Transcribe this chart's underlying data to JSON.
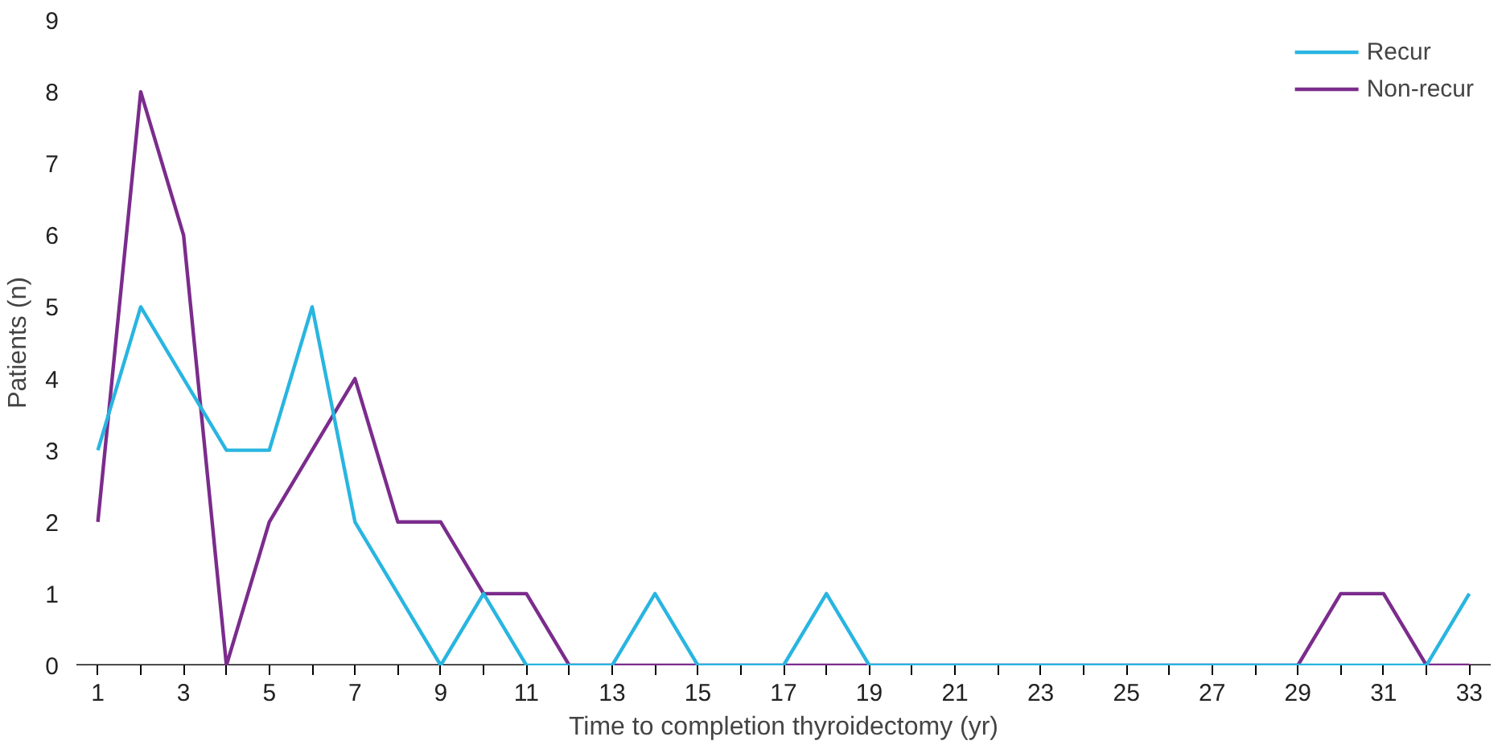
{
  "chart_data": {
    "type": "line",
    "xlabel": "Time to completion thyroidectomy (yr)",
    "ylabel": "Patients (n)",
    "x": [
      1,
      2,
      3,
      4,
      5,
      6,
      7,
      8,
      9,
      10,
      11,
      12,
      13,
      14,
      15,
      16,
      17,
      18,
      19,
      20,
      21,
      22,
      23,
      24,
      25,
      26,
      27,
      28,
      29,
      30,
      31,
      32,
      33
    ],
    "series": [
      {
        "name": "Recur",
        "color": "#29b5e0",
        "values": [
          3,
          5,
          4,
          3,
          3,
          5,
          2,
          1,
          0,
          1,
          0,
          0,
          0,
          1,
          0,
          0,
          0,
          1,
          0,
          0,
          0,
          0,
          0,
          0,
          0,
          0,
          0,
          0,
          0,
          0,
          0,
          0,
          1
        ]
      },
      {
        "name": "Non-recur",
        "color": "#7b2c8c",
        "values": [
          2,
          8,
          6,
          0,
          2,
          3,
          4,
          2,
          2,
          1,
          1,
          0,
          0,
          0,
          0,
          0,
          0,
          0,
          0,
          0,
          0,
          0,
          0,
          0,
          0,
          0,
          0,
          0,
          0,
          1,
          1,
          0,
          0
        ]
      }
    ],
    "xlim": [
      0.5,
      33.5
    ],
    "ylim": [
      0,
      9
    ],
    "xticks": [
      1,
      {
        "value": 2,
        "label": null
      },
      3,
      {
        "value": 4,
        "label": null
      },
      5,
      {
        "value": 6,
        "label": null
      },
      7,
      {
        "value": 8,
        "label": null
      },
      9,
      {
        "value": 10,
        "label": null
      },
      11,
      {
        "value": 12,
        "label": null
      },
      13,
      {
        "value": 14,
        "label": null
      },
      15,
      {
        "value": 16,
        "label": null
      },
      17,
      {
        "value": 18,
        "label": null
      },
      19,
      {
        "value": 20,
        "label": null
      },
      21,
      {
        "value": 22,
        "label": null
      },
      23,
      {
        "value": 24,
        "label": null
      },
      25,
      {
        "value": 26,
        "label": null
      },
      27,
      {
        "value": 28,
        "label": null
      },
      29,
      {
        "value": 30,
        "label": null
      },
      31,
      {
        "value": 32,
        "label": null
      },
      33
    ],
    "yticks": [
      0,
      1,
      2,
      3,
      4,
      5,
      6,
      7,
      8,
      9
    ],
    "grid": false,
    "legend": "top right",
    "marker": "none",
    "line_style": "solid"
  }
}
